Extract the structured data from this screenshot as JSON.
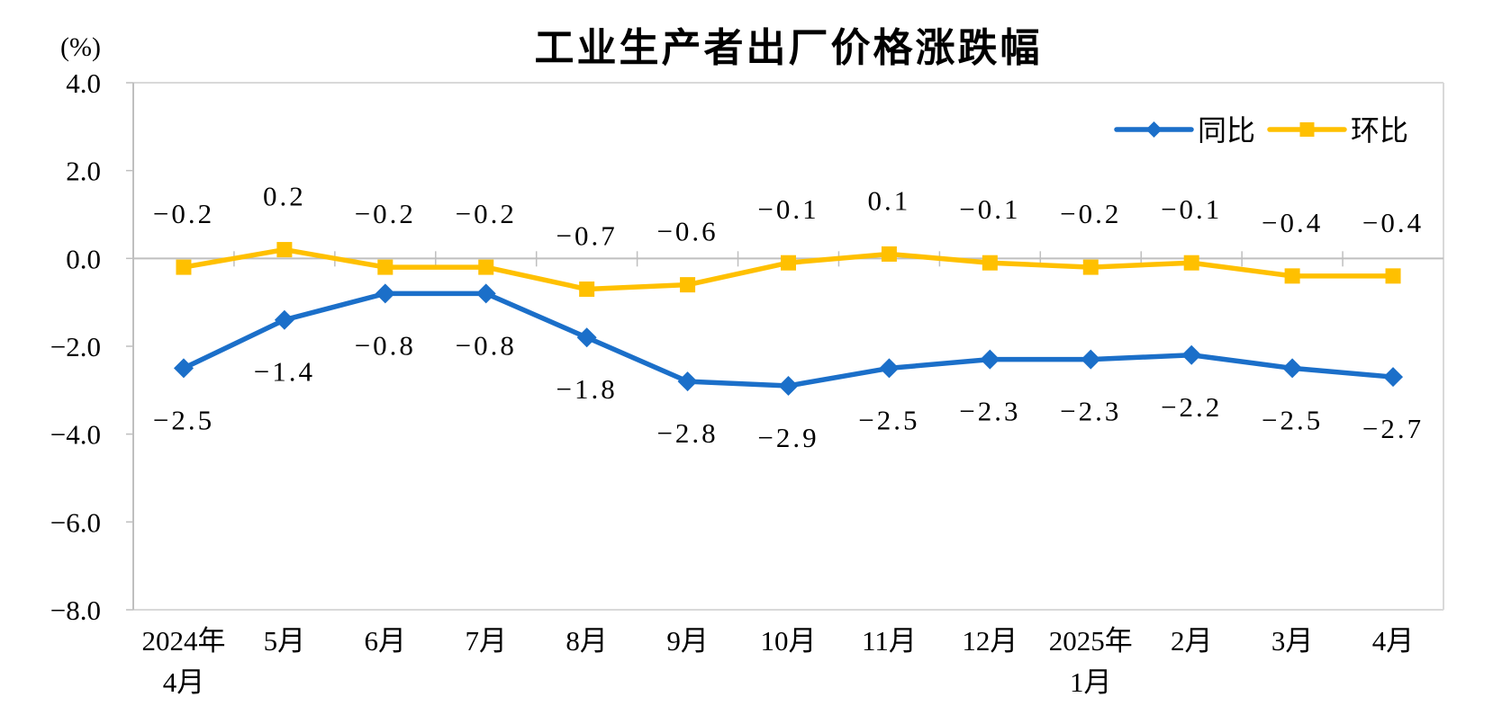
{
  "chart_data": {
    "type": "line",
    "title": "工业生产者出厂价格涨跌幅",
    "unit_label": "(%)",
    "categories": [
      "2024年\n4月",
      "5月",
      "6月",
      "7月",
      "8月",
      "9月",
      "10月",
      "11月",
      "12月",
      "2025年\n1月",
      "2月",
      "3月",
      "4月"
    ],
    "series": [
      {
        "key": "yoy",
        "name": "同比",
        "color": "#1B6FC9",
        "marker": "diamond",
        "label_position": "below",
        "values": [
          -2.5,
          -1.4,
          -0.8,
          -0.8,
          -1.8,
          -2.8,
          -2.9,
          -2.5,
          -2.3,
          -2.3,
          -2.2,
          -2.5,
          -2.7
        ],
        "labels": [
          "-2.5",
          "-1.4",
          "-0.8",
          "-0.8",
          "-1.8",
          "-2.8",
          "-2.9",
          "-2.5",
          "-2.3",
          "-2.3",
          "-2.2",
          "-2.5",
          "-2.7"
        ]
      },
      {
        "key": "mom",
        "name": "环比",
        "color": "#FFC000",
        "marker": "square",
        "label_position": "above",
        "values": [
          -0.2,
          0.2,
          -0.2,
          -0.2,
          -0.7,
          -0.6,
          -0.1,
          0.1,
          -0.1,
          -0.2,
          -0.1,
          -0.4,
          -0.4
        ],
        "labels": [
          "-0.2",
          "0.2",
          "-0.2",
          "-0.2",
          "-0.7",
          "-0.6",
          "-0.1",
          "0.1",
          "-0.1",
          "-0.2",
          "-0.1",
          "-0.4",
          "-0.4"
        ]
      }
    ],
    "y_axis": {
      "min": -8.0,
      "max": 4.0,
      "step": 2.0,
      "tick_labels": [
        "4.0",
        "2.0",
        "0.0",
        "-2.0",
        "-4.0",
        "-6.0",
        "-8.0"
      ]
    },
    "x_axis": {
      "baseline_value": 0.0
    },
    "legend": {
      "position": "top-right",
      "entries": [
        "同比",
        "环比"
      ]
    },
    "grid": "off",
    "colors": {
      "axis": "#BFBFBF",
      "border": "#D9D9D9",
      "text": "#000000"
    }
  }
}
